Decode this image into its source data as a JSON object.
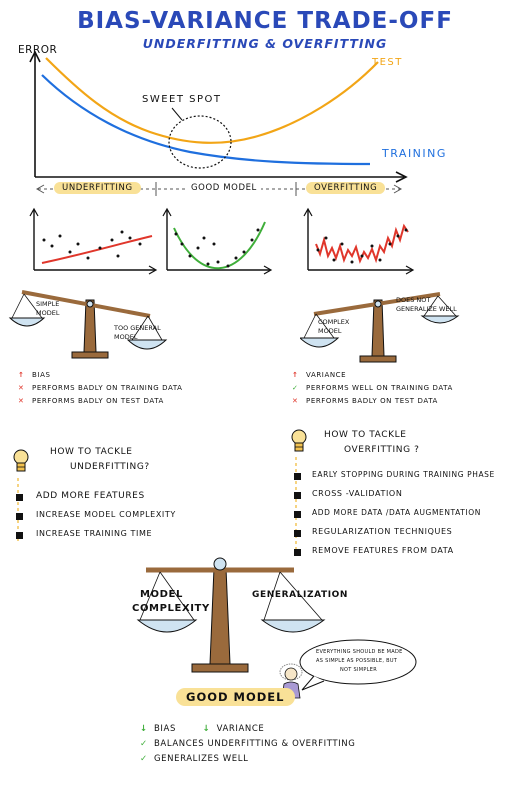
{
  "title": "BIAS-VARIANCE TRADE-OFF",
  "subtitle": "UNDERFITTING & OVERFITTING",
  "main_chart": {
    "y_axis_label": "ERROR",
    "test_label": "TEST",
    "training_label": "TRAINING",
    "sweet_spot_label": "SWEET SPOT",
    "test_color": "#f2a516",
    "training_color": "#1f6fde"
  },
  "regions": {
    "underfitting": "UNDERFITTING",
    "good_model": "GOOD MODEL",
    "overfitting": "OVERFITTING"
  },
  "fit_colors": {
    "under": "#e0362b",
    "good": "#3fae3a",
    "over": "#e0362b"
  },
  "left_scale": {
    "left_label": "SIMPLE MODEL",
    "right_label": "TOO GENERAL MODEL"
  },
  "right_scale": {
    "left_label": "COMPLEX MODEL",
    "right_label": "DOES NOT GENERALIZE WELL"
  },
  "underfit_props": [
    {
      "icon": "up-arrow-icon",
      "mark": "↑",
      "color": "#e0362b",
      "text": "BIAS"
    },
    {
      "icon": "cross-icon",
      "mark": "✕",
      "color": "#e0362b",
      "text": "PERFORMS BADLY ON TRAINING DATA"
    },
    {
      "icon": "cross-icon",
      "mark": "✕",
      "color": "#e0362b",
      "text": "PERFORMS BADLY ON TEST DATA"
    }
  ],
  "overfit_props": [
    {
      "icon": "up-arrow-icon",
      "mark": "↑",
      "color": "#e0362b",
      "text": "VARIANCE"
    },
    {
      "icon": "check-icon",
      "mark": "✓",
      "color": "#3fae3a",
      "text": "PERFORMS WELL ON TRAINING DATA"
    },
    {
      "icon": "cross-icon",
      "mark": "✕",
      "color": "#e0362b",
      "text": "PERFORMS BADLY ON TEST DATA"
    }
  ],
  "tackle_under": {
    "heading_line1": "HOW TO TACKLE",
    "heading_line2": "UNDERFITTING?",
    "items": [
      "ADD MORE FEATURES",
      "INCREASE MODEL COMPLEXITY",
      "INCREASE TRAINING TIME"
    ]
  },
  "tackle_over": {
    "heading_line1": "HOW TO TACKLE",
    "heading_line2": "OVERFITTING ?",
    "items": [
      "EARLY STOPPING DURING TRAINING PHASE",
      "CROSS -VALIDATION",
      "ADD MORE DATA /DATA AUGMENTATION",
      "REGULARIZATION TECHNIQUES",
      "REMOVE FEATURES FROM DATA"
    ]
  },
  "balance": {
    "left_label_line1": "MODEL",
    "left_label_line2": "COMPLEXITY",
    "right_label": "GENERALIZATION"
  },
  "quote": {
    "line1": "EVERYTHING SHOULD BE MADE",
    "line2": "AS SIMPLE AS POSSIBLE, BUT",
    "line3": "NOT SIMPLER"
  },
  "good_model_badge": "GOOD MODEL",
  "summary": [
    {
      "icon": "down-arrow-icon",
      "mark": "↓",
      "color": "#3fae3a",
      "text": "BIAS"
    },
    {
      "icon": "down-arrow-icon",
      "mark": "↓",
      "color": "#3fae3a",
      "text": "VARIANCE"
    },
    {
      "icon": "check-icon",
      "mark": "✓",
      "color": "#3fae3a",
      "text": "BALANCES UNDERFITTING & OVERFITTING"
    },
    {
      "icon": "check-icon",
      "mark": "✓",
      "color": "#3fae3a",
      "text": "GENERALIZES WELL"
    }
  ],
  "colors": {
    "title_blue": "#2a49b8",
    "highlight_yellow": "#f9e197",
    "pan_blue": "#cfe3f1",
    "wood_brown": "#9a6a3c"
  }
}
